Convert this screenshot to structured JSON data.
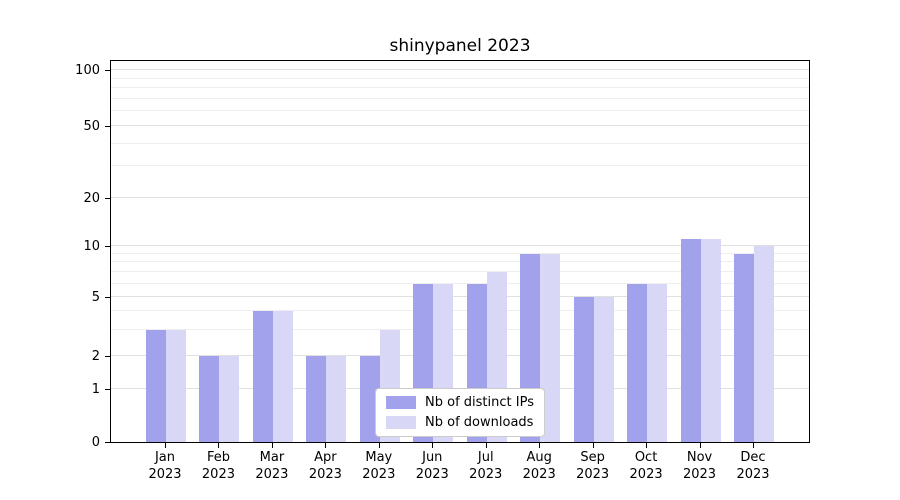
{
  "title": "shinypanel 2023",
  "chart_data": {
    "type": "bar",
    "title": "shinypanel 2023",
    "x_year": "2023",
    "categories": [
      "Jan",
      "Feb",
      "Mar",
      "Apr",
      "May",
      "Jun",
      "Jul",
      "Aug",
      "Sep",
      "Oct",
      "Nov",
      "Dec"
    ],
    "series": [
      {
        "name": "Nb of distinct IPs",
        "color": "#a2a2ec",
        "values": [
          3,
          2,
          4,
          2,
          2,
          6,
          6,
          9,
          5,
          6,
          11,
          9
        ]
      },
      {
        "name": "Nb of downloads",
        "color": "#d8d8f6",
        "values": [
          3,
          2,
          4,
          2,
          3,
          6,
          7,
          9,
          5,
          6,
          11,
          10
        ]
      }
    ],
    "y_axis": {
      "scale": "symlog",
      "ticks": [
        0,
        1,
        2,
        5,
        10,
        20,
        50,
        100
      ],
      "minor_ticks": [
        3,
        4,
        6,
        7,
        8,
        9,
        30,
        40,
        60,
        70,
        80,
        90
      ],
      "ylim": [
        0,
        115
      ]
    },
    "legend": {
      "position": "bottom-center-inside",
      "entries": [
        "Nb of distinct IPs",
        "Nb of downloads"
      ]
    },
    "grid": true
  }
}
